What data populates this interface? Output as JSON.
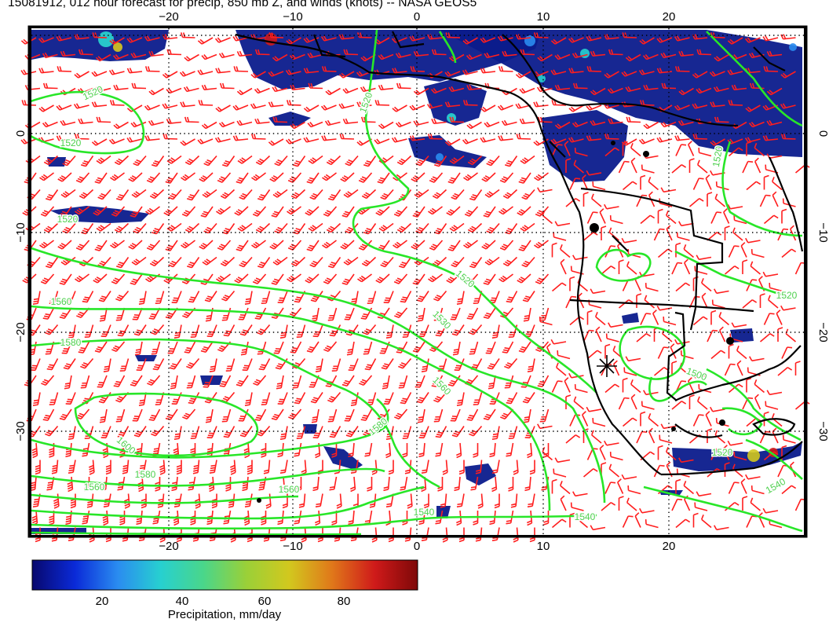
{
  "title": "15081912, 012 hour forecast for precip, 850 mb Z, and winds (knots) -- NASA GEOS5",
  "lon_ticks": [
    "−20",
    "−10",
    "0",
    "10",
    "20"
  ],
  "lat_ticks": [
    "0",
    "−10",
    "−20",
    "−30"
  ],
  "colorbar": {
    "title": "Precipitation, mm/day",
    "ticks": [
      "20",
      "40",
      "60",
      "80"
    ],
    "colors": [
      "#08086e",
      "#0a2ad8",
      "#2a8cf0",
      "#27d0d0",
      "#4ad68a",
      "#9ad038",
      "#d2c81e",
      "#e0781a",
      "#cf1a1a",
      "#7e0808"
    ]
  },
  "contour_labels": [
    "1520",
    "1520",
    "1520",
    "1520",
    "1520",
    "1530",
    "1540",
    "1540",
    "1560",
    "1560",
    "1560",
    "1560",
    "1580",
    "1580",
    "1600",
    "1500",
    "1520",
    "1520",
    "1540",
    "1580",
    "1520"
  ],
  "colors": {
    "contour": "#28e628",
    "barb": "#ff1e1e",
    "coast": "#000000",
    "precip": "#0b1b8c"
  }
}
